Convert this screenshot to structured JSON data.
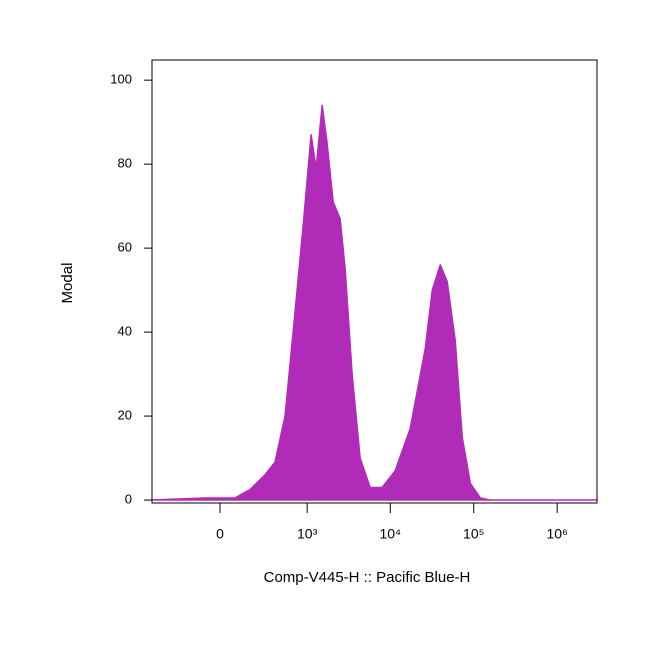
{
  "chart_data": {
    "type": "area",
    "x_label": "Comp-V445-H :: Pacific Blue-H",
    "y_label": "Modal",
    "xscale": "biexponential",
    "color": "#b02cb8",
    "x": [
      -580,
      -78,
      78,
      169,
      289,
      395,
      533,
      712,
      891,
      1117,
      1285,
      1520,
      1745,
      2062,
      2502,
      2876,
      3486,
      4350,
      5733,
      7990,
      11450,
      17330,
      26200,
      31850,
      39700,
      48100,
      60000,
      72800,
      91000,
      120000,
      158000,
      3000000
    ],
    "values": [
      0,
      0.5,
      0.5,
      2.5,
      6,
      9,
      20,
      45,
      65,
      87,
      79,
      94,
      85,
      71,
      67,
      55,
      30,
      10,
      3,
      3,
      7,
      17,
      36,
      50,
      56,
      52,
      38,
      15,
      4,
      0.5,
      0,
      0
    ],
    "xlim": [
      -580,
      3000000
    ],
    "xticks": [
      0,
      {
        "value": 1000,
        "label": "10³"
      },
      {
        "value": 10000,
        "label": "10⁴"
      },
      {
        "value": 100000,
        "label": "10⁵"
      },
      {
        "value": 1000000,
        "label": "10⁶"
      }
    ],
    "ylim": [
      -0.7,
      104.8
    ],
    "yticks": [
      0,
      20,
      40,
      60,
      80,
      100
    ]
  }
}
